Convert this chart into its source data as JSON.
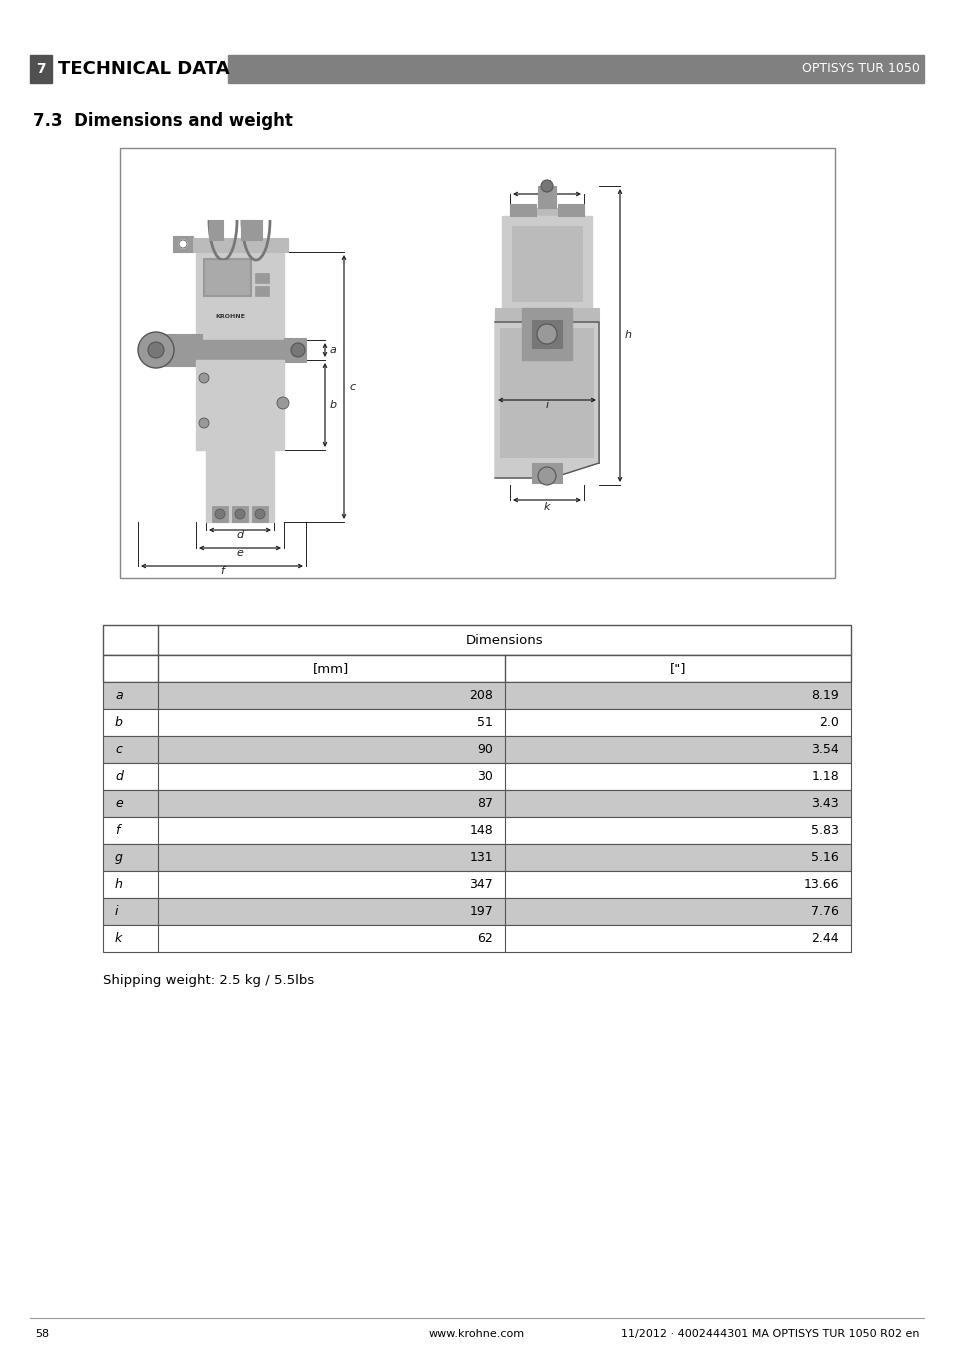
{
  "page_number": "7",
  "page_title": "TECHNICAL DATA",
  "page_subtitle": "OPTISYS TUR 1050",
  "section_title": "7.3  Dimensions and weight",
  "table_header_main": "Dimensions",
  "table_header_mm": "[mm]",
  "table_header_inch": "[\"]",
  "table_rows": [
    {
      "label": "a",
      "mm": "208",
      "inch": "8.19",
      "shaded": true
    },
    {
      "label": "b",
      "mm": "51",
      "inch": "2.0",
      "shaded": false
    },
    {
      "label": "c",
      "mm": "90",
      "inch": "3.54",
      "shaded": true
    },
    {
      "label": "d",
      "mm": "30",
      "inch": "1.18",
      "shaded": false
    },
    {
      "label": "e",
      "mm": "87",
      "inch": "3.43",
      "shaded": true
    },
    {
      "label": "f",
      "mm": "148",
      "inch": "5.83",
      "shaded": false
    },
    {
      "label": "g",
      "mm": "131",
      "inch": "5.16",
      "shaded": true
    },
    {
      "label": "h",
      "mm": "347",
      "inch": "13.66",
      "shaded": false
    },
    {
      "label": "i",
      "mm": "197",
      "inch": "7.76",
      "shaded": true
    },
    {
      "label": "k",
      "mm": "62",
      "inch": "2.44",
      "shaded": false
    }
  ],
  "shipping_weight": "Shipping weight: 2.5 kg / 5.5lbs",
  "footer_page": "58",
  "footer_url": "www.krohne.com",
  "footer_doc": "11/2012 · 4002444301 MA OPTISYS TUR 1050 R02 en",
  "header_bar_color": "#808080",
  "header_number_bg": "#505050",
  "row_shade_color": "#c8c8c8",
  "row_white_color": "#ffffff",
  "ann_color": "#222222",
  "diag_border": "#888888"
}
